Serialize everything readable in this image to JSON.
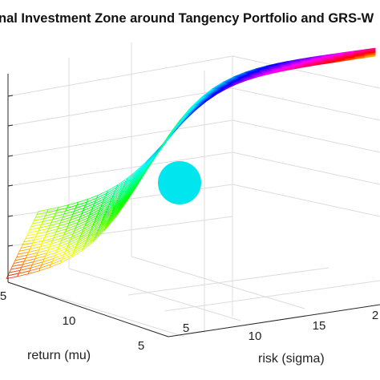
{
  "chart_data": {
    "type": "surface",
    "title": "nal Investment Zone around Tangency Portfolio and GRS-W",
    "xlabel": "risk (sigma)",
    "ylabel": "return (mu)",
    "zlabel": "",
    "x_ticks": [
      "5",
      "10",
      "15",
      "2"
    ],
    "y_ticks": [
      "5",
      "10",
      "5"
    ],
    "grid": true,
    "colormap": "hsv",
    "surface": {
      "description_free": true,
      "shape": "saddle ridge rising from low-return/low-risk corner to high-risk plateau",
      "series": [
        {
          "risk": [
            5,
            8,
            11,
            14,
            17,
            20
          ],
          "height": [
            0.05,
            0.3,
            0.55,
            0.75,
            0.85,
            0.9
          ]
        }
      ]
    },
    "marker": {
      "shape": "sphere",
      "color": "#00e5ee"
    }
  }
}
